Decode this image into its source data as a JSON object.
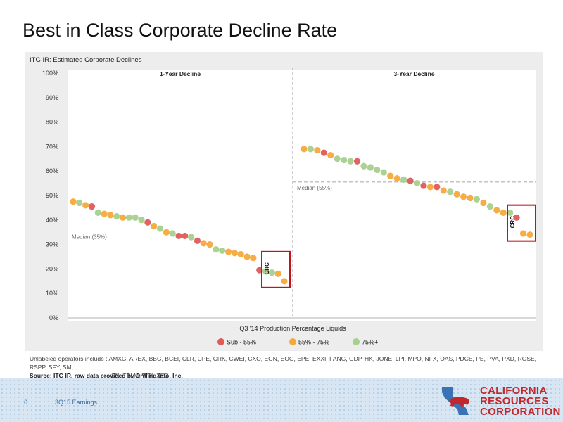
{
  "slide": {
    "title": "Best in Class Corporate Decline Rate",
    "page_number": "6",
    "footer_label": "3Q15 Earnings"
  },
  "logo": {
    "line1": "CALIFORNIA",
    "line2": "RESOURCES",
    "line3": "CORPORATION"
  },
  "footnote": {
    "line1": "Unlabeled operators include : AMXG, AREX, BBG, BCEI, CLR, CPE, CRK, CWEI, CXO, EGN, EOG, EPE, EXXI, FANG, GDP, HK, JONE, LPI, MPO, NFX, OAS, PDCE, PE, PVA, PXD, ROSE, RSPP, SFY, SM,",
    "line2": "SN, TPLM, WTI, XEC",
    "source": "Source: ITG IR, raw data provided by Drilling Info, Inc."
  },
  "colors": {
    "red": "#e05a5a",
    "orange": "#f6a93b",
    "green": "#a8d08d",
    "highlight": "#c0141c"
  },
  "chart_data": {
    "type": "scatter",
    "title": "ITG IR: Estimated Corporate Declines",
    "xlabel": "Q3 '14 Production Percentage Liquids",
    "ylim": [
      0,
      100
    ],
    "yticks": [
      "0%",
      "10%",
      "20%",
      "30%",
      "40%",
      "50%",
      "60%",
      "70%",
      "80%",
      "90%",
      "100%"
    ],
    "legend_position": "bottom",
    "legend": [
      {
        "label": "Sub - 55%",
        "color": "#e05a5a"
      },
      {
        "label": "55% - 75%",
        "color": "#f6a93b"
      },
      {
        "label": "75%+",
        "color": "#a8d08d"
      }
    ],
    "panels": [
      {
        "name": "1-Year Decline",
        "median_label": "Median (35%)",
        "median": 35.5,
        "points": [
          {
            "y": 47.5,
            "c": "o"
          },
          {
            "y": 47,
            "c": "g"
          },
          {
            "y": 46,
            "c": "o"
          },
          {
            "y": 45.5,
            "c": "r"
          },
          {
            "y": 43,
            "c": "g"
          },
          {
            "y": 42.5,
            "c": "o"
          },
          {
            "y": 42,
            "c": "o"
          },
          {
            "y": 41.5,
            "c": "g"
          },
          {
            "y": 41,
            "c": "o"
          },
          {
            "y": 41,
            "c": "g"
          },
          {
            "y": 41,
            "c": "g"
          },
          {
            "y": 40,
            "c": "g"
          },
          {
            "y": 39,
            "c": "r"
          },
          {
            "y": 37.5,
            "c": "o"
          },
          {
            "y": 36.5,
            "c": "g"
          },
          {
            "y": 35,
            "c": "o"
          },
          {
            "y": 34.5,
            "c": "g"
          },
          {
            "y": 33.5,
            "c": "r"
          },
          {
            "y": 33.5,
            "c": "r"
          },
          {
            "y": 33,
            "c": "g"
          },
          {
            "y": 31.5,
            "c": "r"
          },
          {
            "y": 30.5,
            "c": "o"
          },
          {
            "y": 30,
            "c": "o"
          },
          {
            "y": 28,
            "c": "g"
          },
          {
            "y": 27.5,
            "c": "g"
          },
          {
            "y": 27,
            "c": "o"
          },
          {
            "y": 26.5,
            "c": "o"
          },
          {
            "y": 26,
            "c": "o"
          },
          {
            "y": 25,
            "c": "o"
          },
          {
            "y": 24.5,
            "c": "o"
          },
          {
            "y": 19.5,
            "c": "r"
          },
          {
            "y": 19,
            "c": "g"
          },
          {
            "y": 18.5,
            "c": "g"
          },
          {
            "y": 18,
            "c": "o"
          },
          {
            "y": 15,
            "c": "o"
          }
        ],
        "highlight": {
          "label": "CRC",
          "y": 15
        }
      },
      {
        "name": "3-Year Decline",
        "median_label": "Median (55%)",
        "median": 55.5,
        "points": [
          {
            "y": 69,
            "c": "o"
          },
          {
            "y": 69,
            "c": "g"
          },
          {
            "y": 68.5,
            "c": "o"
          },
          {
            "y": 67.5,
            "c": "r"
          },
          {
            "y": 66.5,
            "c": "o"
          },
          {
            "y": 65,
            "c": "g"
          },
          {
            "y": 64.5,
            "c": "g"
          },
          {
            "y": 64,
            "c": "g"
          },
          {
            "y": 64,
            "c": "r"
          },
          {
            "y": 62,
            "c": "g"
          },
          {
            "y": 61.5,
            "c": "g"
          },
          {
            "y": 60.5,
            "c": "g"
          },
          {
            "y": 59.5,
            "c": "g"
          },
          {
            "y": 58,
            "c": "o"
          },
          {
            "y": 57,
            "c": "o"
          },
          {
            "y": 56.5,
            "c": "g"
          },
          {
            "y": 56,
            "c": "r"
          },
          {
            "y": 55,
            "c": "g"
          },
          {
            "y": 54,
            "c": "r"
          },
          {
            "y": 53.5,
            "c": "o"
          },
          {
            "y": 53.5,
            "c": "r"
          },
          {
            "y": 52,
            "c": "o"
          },
          {
            "y": 51.5,
            "c": "g"
          },
          {
            "y": 50.5,
            "c": "o"
          },
          {
            "y": 49.5,
            "c": "o"
          },
          {
            "y": 49,
            "c": "o"
          },
          {
            "y": 48.5,
            "c": "g"
          },
          {
            "y": 47,
            "c": "o"
          },
          {
            "y": 45.5,
            "c": "g"
          },
          {
            "y": 44,
            "c": "o"
          },
          {
            "y": 43,
            "c": "o"
          },
          {
            "y": 43,
            "c": "g"
          },
          {
            "y": 41,
            "c": "r"
          },
          {
            "y": 34.5,
            "c": "o"
          },
          {
            "y": 34,
            "c": "o"
          }
        ],
        "highlight": {
          "label": "CRC",
          "y": 34
        }
      }
    ]
  }
}
